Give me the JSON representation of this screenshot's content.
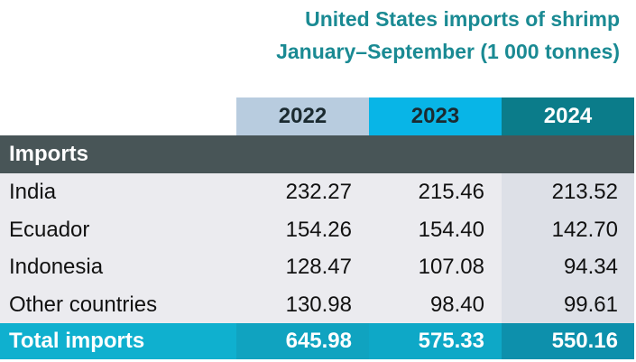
{
  "chart_data": {
    "type": "table",
    "title_line1": "United States imports of shrimp",
    "title_line2": "January–September (1 000 tonnes)",
    "columns": [
      "2022",
      "2023",
      "2024"
    ],
    "section_label": "Imports",
    "rows": [
      {
        "label": "India",
        "values": [
          "232.27",
          "215.46",
          "213.52"
        ]
      },
      {
        "label": "Ecuador",
        "values": [
          "154.26",
          "154.40",
          "142.70"
        ]
      },
      {
        "label": "Indonesia",
        "values": [
          "128.47",
          "107.08",
          "94.34"
        ]
      },
      {
        "label": "Other countries",
        "values": [
          "130.98",
          "98.40",
          "99.61"
        ]
      }
    ],
    "total": {
      "label": "Total imports",
      "values": [
        "645.98",
        "575.33",
        "550.16"
      ]
    }
  },
  "colors": {
    "title": "#1a8a93",
    "year_2022": "#b8ccdf",
    "year_2023": "#08b5e7",
    "year_2024": "#0b7c8a",
    "section_bar": "#485557",
    "total_bar": "#0fb0cf"
  }
}
